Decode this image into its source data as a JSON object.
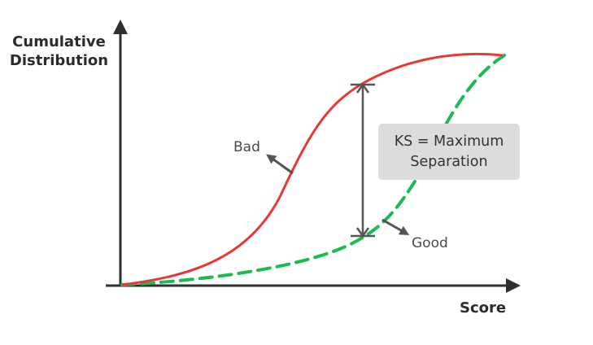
{
  "y_axis_label": [
    "Cumulative",
    "Distribution"
  ],
  "x_axis_label": "Score",
  "labels": {
    "bad": "Bad",
    "good": "Good"
  },
  "ks_box": [
    "KS = Maximum",
    "Separation"
  ],
  "colors": {
    "bad_curve": "#e53935",
    "good_curve": "#1db954",
    "axis": "#2f2f2f",
    "arrow": "#555555",
    "box": "#dcdcdc"
  }
}
